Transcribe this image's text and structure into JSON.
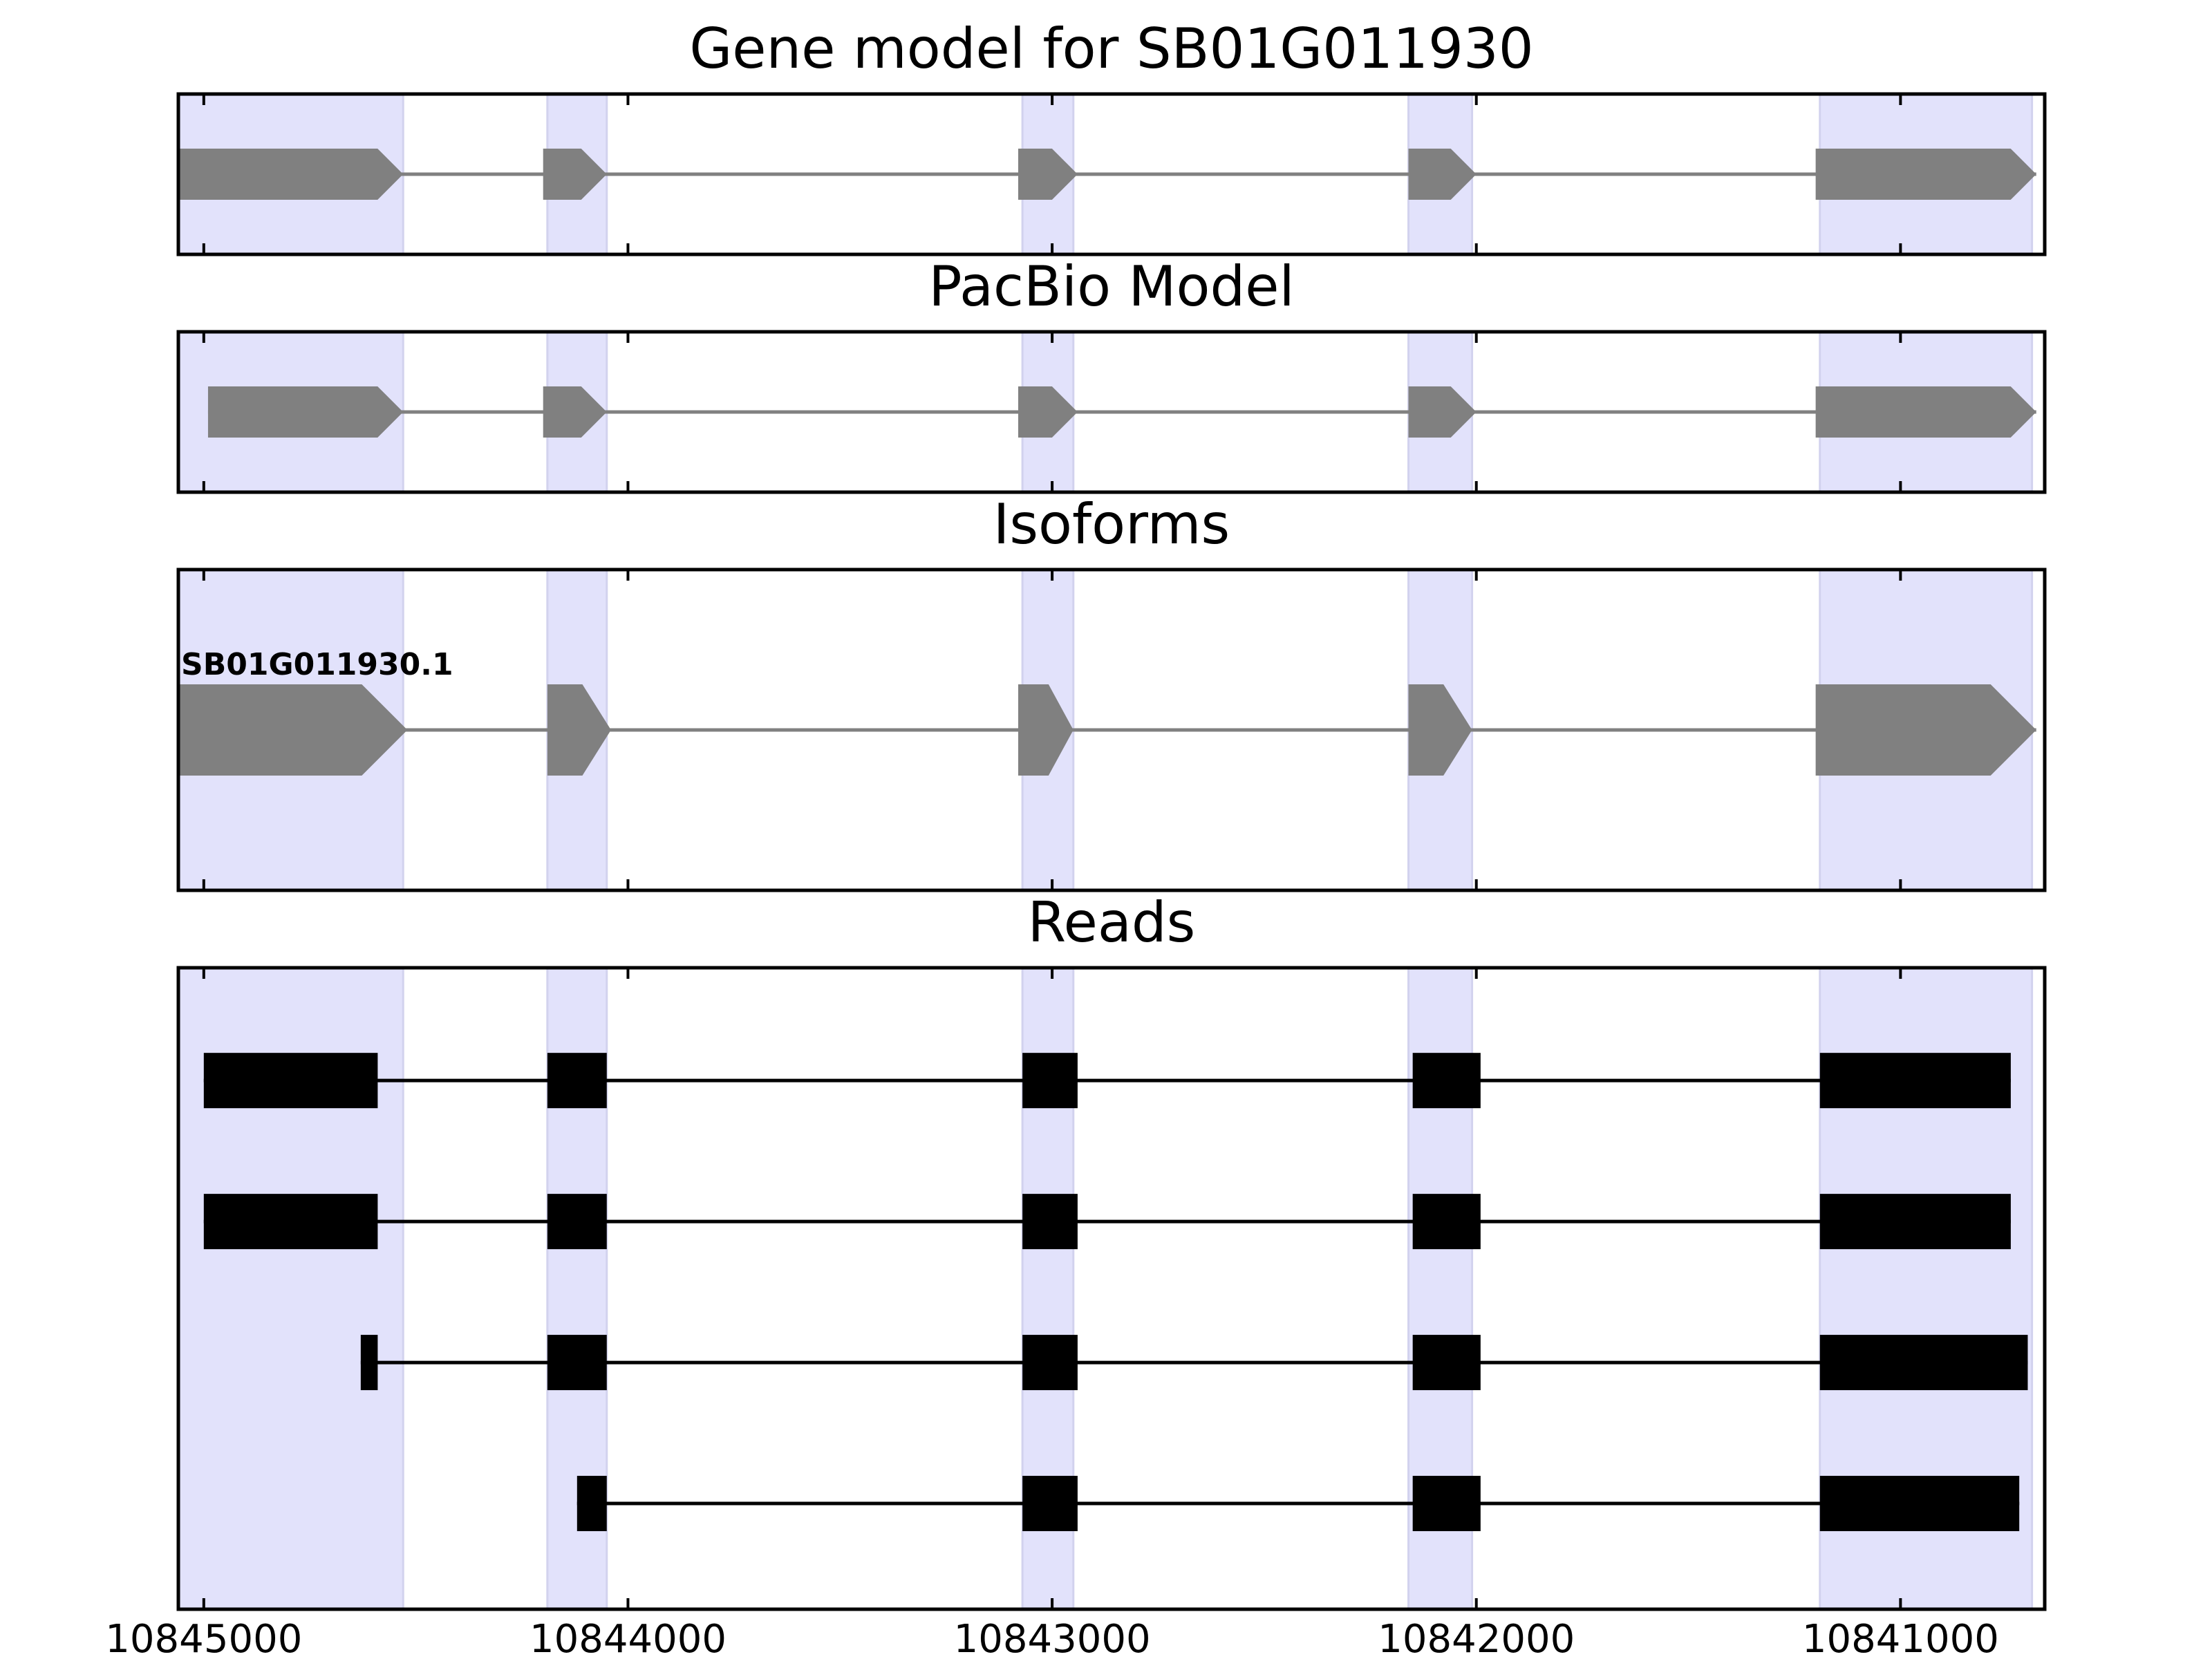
{
  "chart_data": {
    "type": "gene-track",
    "x_axis": {
      "lim": [
        10845060,
        10840660
      ],
      "ticks": [
        10845000,
        10844000,
        10843000,
        10842000,
        10841000
      ],
      "tick_labels": [
        "10845000",
        "10844000",
        "10843000",
        "10842000",
        "10841000"
      ],
      "reversed": true
    },
    "highlight_color": "#e2e2fb",
    "highlight_regions": [
      [
        10845060,
        10844530
      ],
      [
        10844190,
        10844050
      ],
      [
        10843070,
        10842950
      ],
      [
        10842160,
        10842010
      ],
      [
        10841190,
        10840690
      ]
    ],
    "panels": [
      {
        "title": "Gene model for SB01G011930",
        "kind": "gene",
        "color": "#808080",
        "models": [
          {
            "exons": [
              [
                10845060,
                10844530
              ],
              [
                10844200,
                10844050
              ],
              [
                10843080,
                10842940
              ],
              [
                10842160,
                10842000
              ],
              [
                10841200,
                10840680
              ]
            ]
          }
        ]
      },
      {
        "title": "PacBio Model",
        "kind": "gene",
        "color": "#808080",
        "models": [
          {
            "exons": [
              [
                10844990,
                10844530
              ],
              [
                10844200,
                10844050
              ],
              [
                10843080,
                10842940
              ],
              [
                10842160,
                10842000
              ],
              [
                10841200,
                10840680
              ]
            ]
          }
        ]
      },
      {
        "title": "Isoforms",
        "kind": "gene",
        "color": "#808080",
        "models": [
          {
            "label": "SB01G011930.1",
            "exons": [
              [
                10845060,
                10844520
              ],
              [
                10844190,
                10844040
              ],
              [
                10843080,
                10842950
              ],
              [
                10842160,
                10842010
              ],
              [
                10841200,
                10840680
              ]
            ]
          }
        ]
      },
      {
        "title": "Reads",
        "kind": "reads",
        "color": "#000000",
        "models": [
          {
            "exons": [
              [
                10845000,
                10844590
              ],
              [
                10844190,
                10844050
              ],
              [
                10843070,
                10842940
              ],
              [
                10842150,
                10841990
              ],
              [
                10841190,
                10840740
              ]
            ]
          },
          {
            "exons": [
              [
                10845000,
                10844590
              ],
              [
                10844190,
                10844050
              ],
              [
                10843070,
                10842940
              ],
              [
                10842150,
                10841990
              ],
              [
                10841190,
                10840740
              ]
            ]
          },
          {
            "exons": [
              [
                10844630,
                10844590
              ],
              [
                10844190,
                10844050
              ],
              [
                10843070,
                10842940
              ],
              [
                10842150,
                10841990
              ],
              [
                10841190,
                10840700
              ]
            ]
          },
          {
            "exons": [
              [
                10844120,
                10844050
              ],
              [
                10843070,
                10842940
              ],
              [
                10842150,
                10841990
              ],
              [
                10841190,
                10840720
              ]
            ]
          }
        ]
      }
    ]
  }
}
